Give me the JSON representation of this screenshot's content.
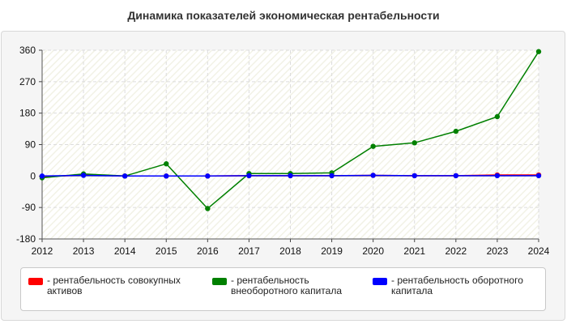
{
  "title": "Динамика показателей экономическая рентабельности",
  "colors": {
    "series1": "#ff0000",
    "series2": "#008000",
    "series3": "#0000ff"
  },
  "legend": {
    "s1_text": "- рентабельность совокупных активов",
    "s2_text": "- рентабельность внеоборотного капитала",
    "s3_text": "- рентабельность оборотного капитала"
  },
  "chart_data": {
    "type": "line",
    "title": "Динамика показателей экономическая рентабельности",
    "x": [
      "2012",
      "2013",
      "2014",
      "2015",
      "2016",
      "2017",
      "2018",
      "2019",
      "2020",
      "2021",
      "2022",
      "2023",
      "2024"
    ],
    "yticks": [
      "360",
      "270",
      "180",
      "90",
      "0",
      "-90",
      "-180"
    ],
    "ylim": [
      -180,
      360
    ],
    "grid": true,
    "legend_position": "bottom",
    "series": [
      {
        "name": "рентабельность совокупных активов",
        "color": "#ff0000",
        "values": [
          -2,
          3,
          0,
          0,
          0,
          1,
          1,
          1,
          2,
          1,
          1,
          3,
          3
        ]
      },
      {
        "name": "рентабельность внеоборотного капитала",
        "color": "#008000",
        "values": [
          -5,
          6,
          0,
          35,
          -93,
          7,
          7,
          9,
          85,
          95,
          128,
          170,
          356
        ]
      },
      {
        "name": "рентабельность оборотного капитала",
        "color": "#0000ff",
        "values": [
          0,
          2,
          0,
          0,
          0,
          1,
          1,
          1,
          2,
          1,
          1,
          1,
          1
        ]
      }
    ]
  }
}
